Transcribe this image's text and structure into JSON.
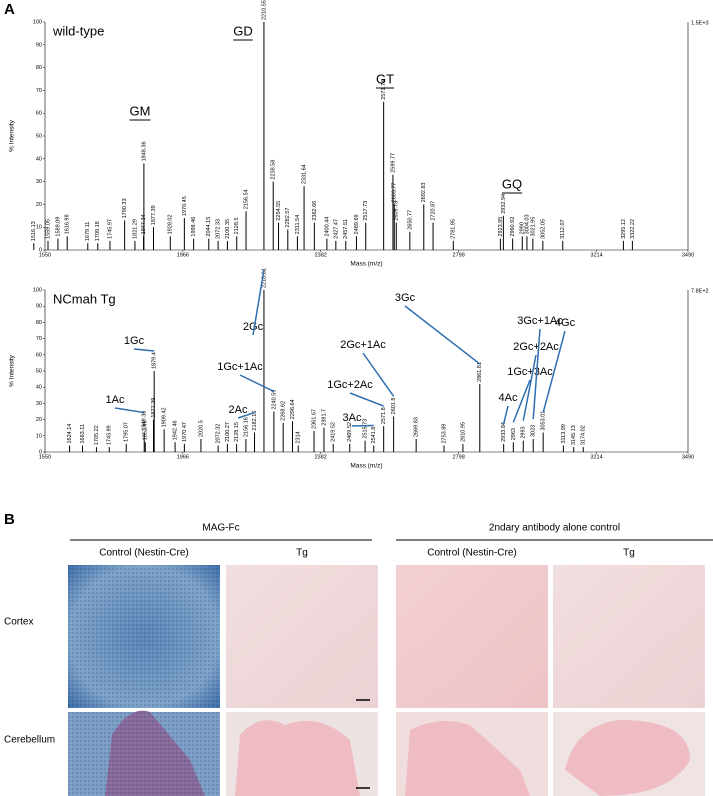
{
  "panel_labels": [
    "A",
    "B"
  ],
  "chart_data": [
    {
      "type": "spectrum",
      "title": "wild-type",
      "y_label": "% Intensity",
      "x_label": "Mass (m/z)",
      "max_label": "1.5E+3",
      "color": "#000000",
      "xlim": [
        1550,
        3490
      ],
      "xticks": [
        1550,
        1966,
        2382,
        2798,
        3214,
        3490
      ],
      "ylim": [
        0,
        100
      ],
      "yticks": [
        0,
        10,
        20,
        30,
        40,
        50,
        60,
        70,
        80,
        90,
        100
      ],
      "x": [
        1516.13,
        1559.05,
        1589.09,
        1616.98,
        1679.11,
        1709.18,
        1745.97,
        1790.33,
        1821.29,
        1847.34,
        1848.36,
        1877.39,
        1928.02,
        1970.45,
        1998.46,
        2044.15,
        2072.33,
        2100.35,
        2128.5,
        2156.54,
        2210.55,
        2238.58,
        2254.55,
        2282.57,
        2311.54,
        2331.64,
        2362.66,
        2400.44,
        2427.47,
        2457.51,
        2489.69,
        2517.73,
        2571.74,
        2599.77,
        2603.77,
        2609.78,
        2650.77,
        2692.83,
        2720.87,
        2781.85,
        2923.95,
        2932.94,
        2960.92,
        2990.0,
        3004.03,
        3021.95,
        3052.05,
        3112.07,
        3295.12,
        3322.22
      ],
      "values": [
        3,
        4,
        5,
        6,
        3,
        3,
        4,
        13,
        4,
        6,
        38,
        10,
        6,
        14,
        5,
        5,
        4,
        4,
        6,
        17,
        100,
        30,
        12,
        9,
        6,
        28,
        12,
        5,
        4,
        4,
        6,
        12,
        65,
        33,
        20,
        12,
        8,
        20,
        12,
        4,
        5,
        15,
        5,
        6,
        6,
        5,
        4,
        4,
        4,
        4
      ],
      "annotations": [
        {
          "text": "GM",
          "underline": true
        },
        {
          "text": "GD",
          "underline": true
        },
        {
          "text": "GT",
          "underline": true
        },
        {
          "text": "GQ",
          "underline": true
        }
      ]
    },
    {
      "type": "spectrum",
      "title": "NCmah Tg",
      "y_label": "% Intensity",
      "x_label": "Mass (m/z)",
      "max_label": "7.8E+2",
      "color": "#000000",
      "xlim": [
        1550,
        3490
      ],
      "xticks": [
        1550,
        1966,
        2382,
        2798,
        3214,
        3490
      ],
      "ylim": [
        0,
        100
      ],
      "yticks": [
        0,
        10,
        20,
        30,
        40,
        50,
        60,
        70,
        80,
        90,
        100
      ],
      "x": [
        1624.14,
        1663.11,
        1705.22,
        1743.99,
        1795.07,
        1849.36,
        1852.49,
        1877.39,
        1879.4,
        1909.42,
        1942.46,
        1970.47,
        2020.5,
        2072.32,
        2100.27,
        2128.15,
        2156.16,
        2182.16,
        2210.61,
        2240.59,
        2268.62,
        2296.64,
        2314.0,
        2361.67,
        2391.7,
        2419.52,
        2469.52,
        2515.73,
        2541.8,
        2571.8,
        2601.8,
        2669.83,
        2753.89,
        2810.95,
        2861.81,
        2933.84,
        2963.0,
        2993.0,
        3023.0,
        3053.01,
        3113.99,
        3145.13,
        3174.02
      ],
      "values": [
        4,
        4,
        3,
        3,
        5,
        12,
        6,
        20,
        50,
        14,
        6,
        5,
        8,
        4,
        5,
        5,
        8,
        12,
        100,
        25,
        18,
        19,
        4,
        13,
        15,
        5,
        5,
        7,
        4,
        16,
        22,
        8,
        4,
        5,
        42,
        5,
        6,
        7,
        8,
        12,
        4,
        3,
        3
      ],
      "annotations": [
        {
          "text": "1Ac",
          "underline": false
        },
        {
          "text": "1Gc",
          "underline": false
        },
        {
          "text": "2Ac",
          "underline": false
        },
        {
          "text": "1Gc+1Ac",
          "underline": false
        },
        {
          "text": "2Gc",
          "underline": false
        },
        {
          "text": "3Ac",
          "underline": false
        },
        {
          "text": "1Gc+2Ac",
          "underline": false
        },
        {
          "text": "2Gc+1Ac",
          "underline": false
        },
        {
          "text": "3Gc",
          "underline": false
        },
        {
          "text": "4Ac",
          "underline": false
        },
        {
          "text": "1Gc+3Ac",
          "underline": false
        },
        {
          "text": "2Gc+2Ac",
          "underline": false
        },
        {
          "text": "3Gc+1Ac",
          "underline": false
        },
        {
          "text": "4Gc",
          "underline": false
        }
      ]
    }
  ],
  "panel_b": {
    "groups": [
      "MAG-Fc",
      "2ndary antibody alone control"
    ],
    "columns": [
      "Control (Nestin-Cre)",
      "Tg",
      "Control (Nestin-Cre)",
      "Tg"
    ],
    "rows": [
      "Cortex",
      "Cerebellum"
    ]
  }
}
